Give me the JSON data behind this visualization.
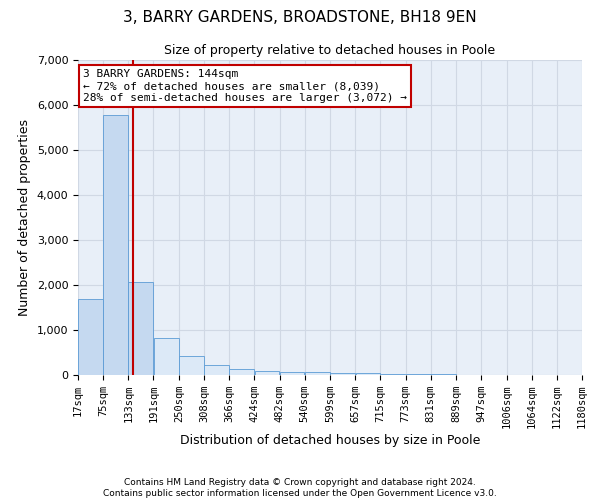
{
  "title1": "3, BARRY GARDENS, BROADSTONE, BH18 9EN",
  "title2": "Size of property relative to detached houses in Poole",
  "xlabel": "Distribution of detached houses by size in Poole",
  "ylabel": "Number of detached properties",
  "annotation_title": "3 BARRY GARDENS: 144sqm",
  "annotation_line1": "← 72% of detached houses are smaller (8,039)",
  "annotation_line2": "28% of semi-detached houses are larger (3,072) →",
  "property_size": 144,
  "bin_edges": [
    17,
    75,
    133,
    191,
    250,
    308,
    366,
    424,
    482,
    540,
    599,
    657,
    715,
    773,
    831,
    889,
    947,
    1006,
    1064,
    1122,
    1180
  ],
  "bar_heights": [
    1680,
    5780,
    2060,
    820,
    420,
    220,
    130,
    90,
    70,
    60,
    50,
    40,
    30,
    20,
    15,
    10,
    8,
    5,
    3,
    2
  ],
  "bar_color_left": "#c5d9f0",
  "bar_color_right": "#dce9f7",
  "bar_edge_color": "#5b9bd5",
  "vline_color": "#c00000",
  "annotation_box_color": "#c00000",
  "annotation_fill": "white",
  "grid_color": "#d0d8e4",
  "bg_color": "#e8eff8",
  "footer1": "Contains HM Land Registry data © Crown copyright and database right 2024.",
  "footer2": "Contains public sector information licensed under the Open Government Licence v3.0.",
  "ylim": [
    0,
    7000
  ],
  "yticks": [
    0,
    1000,
    2000,
    3000,
    4000,
    5000,
    6000,
    7000
  ]
}
